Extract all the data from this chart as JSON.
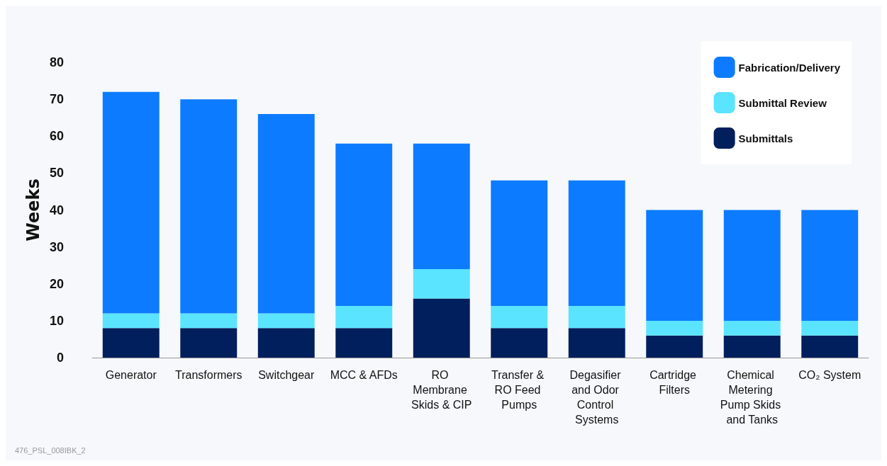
{
  "chart_data": {
    "type": "bar",
    "ylabel": "Weeks",
    "stacked": true,
    "categories": [
      "Generator",
      "Transformers",
      "Switchgear",
      "MCC & AFDs",
      "RO Membrane Skids & CIP",
      "Transfer & RO Feed Pumps",
      "Degasifier and Odor Control Systems",
      "Cartridge Filters",
      "Chemical Metering Pump Skids and Tanks",
      "CO₂ System"
    ],
    "series": [
      {
        "name": "Submittals",
        "color": "#001f5c",
        "values": [
          8,
          8,
          8,
          8,
          16,
          8,
          8,
          6,
          6,
          6
        ]
      },
      {
        "name": "Submittal Review",
        "color": "#5ae4ff",
        "values": [
          4,
          4,
          4,
          6,
          8,
          6,
          6,
          4,
          4,
          4
        ]
      },
      {
        "name": "Fabrication/Delivery",
        "color": "#0d7bff",
        "values": [
          60,
          58,
          54,
          44,
          34,
          34,
          34,
          30,
          30,
          30
        ]
      }
    ],
    "ylim": [
      0,
      80
    ],
    "yticks": [
      0,
      10,
      20,
      30,
      40,
      50,
      60,
      70,
      80
    ],
    "grid": false,
    "legend": "top right",
    "annotations": [
      "476_PSL_008IBK_2"
    ]
  }
}
